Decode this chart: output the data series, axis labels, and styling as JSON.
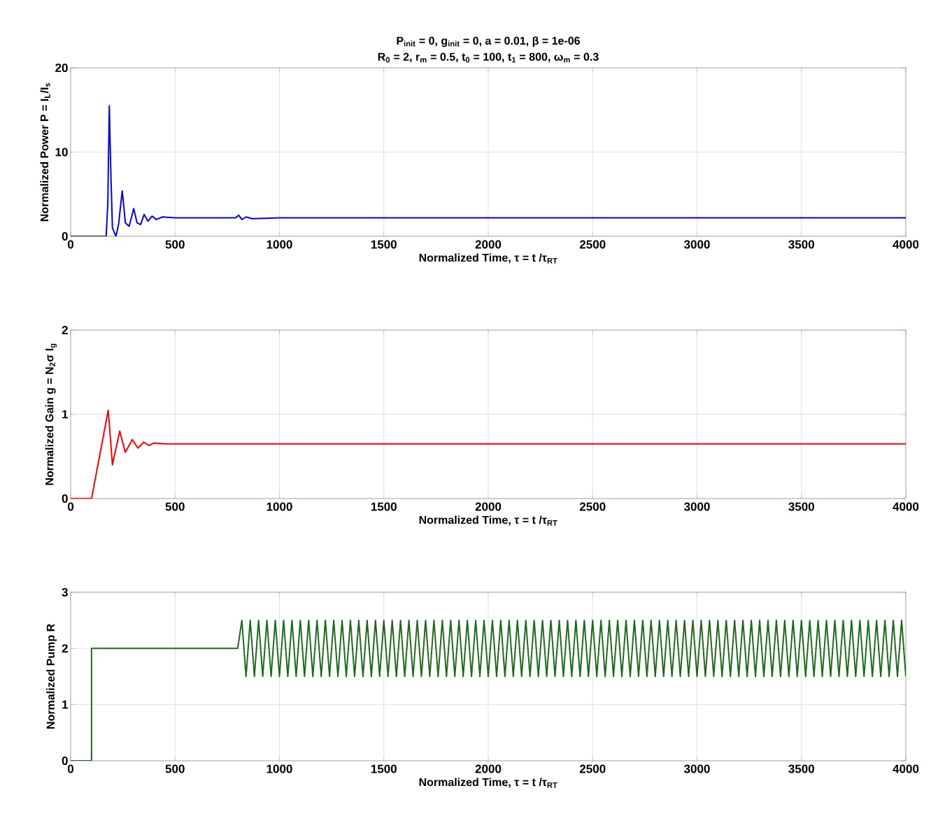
{
  "chart_data": [
    {
      "type": "line",
      "title": "P$_{init}$ = 0, g$_{init}$ = 0, a = 0.01, β = 1e-06",
      "subtitle": "R$_{0}$ = 2, r$_{m}$ = 0.5, t$_{0}$ = 100, t$_{1}$ = 800, ω$_{m}$ = 0.3",
      "xlabel": "Normalized Time, τ = t /τ$_{RT}$",
      "ylabel": "Normalized Power P = I$_{L}$/I$_{s}$",
      "xlim": [
        0,
        4000
      ],
      "ylim": [
        0,
        20
      ],
      "xticks": [
        0,
        500,
        1000,
        1500,
        2000,
        2500,
        3000,
        3500,
        4000
      ],
      "yticks": [
        0,
        10,
        20
      ],
      "grid": true,
      "series": [
        {
          "color": "#0000ff",
          "x": [
            0,
            170,
            178,
            185,
            192,
            200,
            217,
            230,
            247,
            262,
            280,
            302,
            318,
            335,
            352,
            370,
            390,
            410,
            440,
            500,
            790,
            805,
            820,
            840,
            870,
            1000,
            4000
          ],
          "values": [
            0,
            0,
            4,
            15.5,
            8,
            1,
            0,
            1.5,
            5.4,
            1.6,
            1.2,
            3.3,
            1.6,
            1.4,
            2.6,
            1.8,
            2.4,
            2.0,
            2.3,
            2.2,
            2.2,
            2.5,
            2.0,
            2.3,
            2.1,
            2.2,
            2.2
          ]
        }
      ]
    },
    {
      "type": "line",
      "xlabel": "Normalized Time, τ = t /τ$_{RT}$",
      "ylabel": "Normalized Gain g = N$_{2}$σ I$_{g}$",
      "xlim": [
        0,
        4000
      ],
      "ylim": [
        0,
        2
      ],
      "xticks": [
        0,
        500,
        1000,
        1500,
        2000,
        2500,
        3000,
        3500,
        4000
      ],
      "yticks": [
        0,
        1,
        2
      ],
      "grid": true,
      "series": [
        {
          "color": "#ff0000",
          "x": [
            0,
            100,
            180,
            200,
            235,
            262,
            295,
            322,
            350,
            375,
            400,
            450,
            500,
            800,
            4000
          ],
          "values": [
            0,
            0,
            1.05,
            0.4,
            0.8,
            0.55,
            0.7,
            0.6,
            0.67,
            0.63,
            0.66,
            0.65,
            0.65,
            0.65,
            0.65
          ]
        }
      ]
    },
    {
      "type": "line",
      "xlabel": "Normalized Time, τ = t /τ$_{RT}$",
      "ylabel": "Normalized Pump R",
      "xlim": [
        0,
        4000
      ],
      "ylim": [
        0,
        3
      ],
      "xticks": [
        0,
        500,
        1000,
        1500,
        2000,
        2500,
        3000,
        3500,
        4000
      ],
      "yticks": [
        0,
        1,
        2,
        3
      ],
      "grid": true,
      "series": [
        {
          "color": "#1e6b1e",
          "x": [
            0,
            100,
            100,
            800,
            820,
            840,
            860,
            880,
            900,
            920,
            940,
            960,
            980,
            1000,
            1020,
            1040,
            1060,
            1080,
            1100,
            1120,
            1140,
            1160,
            1180,
            1200,
            1220,
            1240,
            1260,
            1280,
            1300,
            1320,
            1340,
            1360,
            1380,
            1400,
            1420,
            1440,
            1460,
            1480,
            1500,
            1520,
            1540,
            1560,
            1580,
            1600,
            1620,
            1640,
            1660,
            1680,
            1700,
            1720,
            1740,
            1760,
            1780,
            1800,
            1820,
            1840,
            1860,
            1880,
            1900,
            1920,
            1940,
            1960,
            1980,
            2000,
            2020,
            2040,
            2060,
            2080,
            2100,
            2120,
            2140,
            2160,
            2180,
            2200,
            2220,
            2240,
            2260,
            2280,
            2300,
            2320,
            2340,
            2360,
            2380,
            2400,
            2420,
            2440,
            2460,
            2480,
            2500,
            2520,
            2540,
            2560,
            2580,
            2600,
            2620,
            2640,
            2660,
            2680,
            2700,
            2720,
            2740,
            2760,
            2780,
            2800,
            2820,
            2840,
            2860,
            2880,
            2900,
            2920,
            2940,
            2960,
            2980,
            3000,
            3020,
            3040,
            3060,
            3080,
            3100,
            3120,
            3140,
            3160,
            3180,
            3200,
            3220,
            3240,
            3260,
            3280,
            3300,
            3320,
            3340,
            3360,
            3380,
            3400,
            3420,
            3440,
            3460,
            3480,
            3500,
            3520,
            3540,
            3560,
            3580,
            3600,
            3620,
            3640,
            3660,
            3680,
            3700,
            3720,
            3740,
            3760,
            3780,
            3800,
            3820,
            3840,
            3860,
            3880,
            3900,
            3920,
            3940,
            3960,
            3980,
            4000
          ],
          "values": [
            0,
            0,
            2,
            2,
            2.5,
            1.5,
            2.5,
            1.5,
            2.5,
            1.5,
            2.5,
            1.5,
            2.5,
            1.5,
            2.5,
            1.5,
            2.5,
            1.5,
            2.5,
            1.5,
            2.5,
            1.5,
            2.5,
            1.5,
            2.5,
            1.5,
            2.5,
            1.5,
            2.5,
            1.5,
            2.5,
            1.5,
            2.5,
            1.5,
            2.5,
            1.5,
            2.5,
            1.5,
            2.5,
            1.5,
            2.5,
            1.5,
            2.5,
            1.5,
            2.5,
            1.5,
            2.5,
            1.5,
            2.5,
            1.5,
            2.5,
            1.5,
            2.5,
            1.5,
            2.5,
            1.5,
            2.5,
            1.5,
            2.5,
            1.5,
            2.5,
            1.5,
            2.5,
            1.5,
            2.5,
            1.5,
            2.5,
            1.5,
            2.5,
            1.5,
            2.5,
            1.5,
            2.5,
            1.5,
            2.5,
            1.5,
            2.5,
            1.5,
            2.5,
            1.5,
            2.5,
            1.5,
            2.5,
            1.5,
            2.5,
            1.5,
            2.5,
            1.5,
            2.5,
            1.5,
            2.5,
            1.5,
            2.5,
            1.5,
            2.5,
            1.5,
            2.5,
            1.5,
            2.5,
            1.5,
            2.5,
            1.5,
            2.5,
            1.5,
            2.5,
            1.5,
            2.5,
            1.5,
            2.5,
            1.5,
            2.5,
            1.5,
            2.5,
            1.5,
            2.5,
            1.5,
            2.5,
            1.5,
            2.5,
            1.5,
            2.5,
            1.5,
            2.5,
            1.5,
            2.5,
            1.5,
            2.5,
            1.5,
            2.5,
            1.5,
            2.5,
            1.5,
            2.5,
            1.5,
            2.5,
            1.5,
            2.5,
            1.5,
            2.5,
            1.5,
            2.5,
            1.5,
            2.5,
            1.5,
            2.5,
            1.5,
            2.5,
            1.5,
            2.5,
            1.5,
            2.5,
            1.5,
            2.5,
            1.5,
            2.5,
            1.5,
            2.5,
            1.5,
            2.5,
            1.5,
            2.5,
            1.5,
            2.5,
            1.5
          ]
        }
      ]
    }
  ]
}
